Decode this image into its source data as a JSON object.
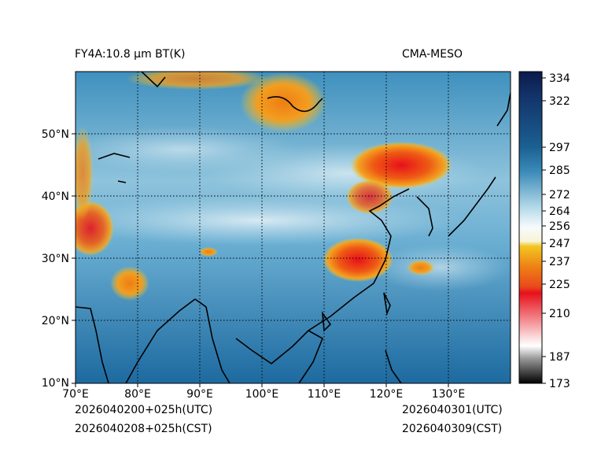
{
  "header": {
    "title_left": "FY4A:10.8 µm BT(K)",
    "title_right": "CMA-MESO"
  },
  "footer": {
    "init_utc": "2026040200+025h(UTC)",
    "init_cst": "2026040208+025h(CST)",
    "valid_utc": "2026040301(UTC)",
    "valid_cst": "2026040309(CST)"
  },
  "map": {
    "lon_range": [
      70,
      140
    ],
    "lat_range": [
      10,
      60
    ],
    "lon_ticks": [
      "70°E",
      "80°E",
      "90°E",
      "100°E",
      "110°E",
      "120°E",
      "130°E"
    ],
    "lat_ticks": [
      "10°N",
      "20°N",
      "30°N",
      "40°N",
      "50°N"
    ]
  },
  "colorbar": {
    "labels": [
      "334",
      "322",
      "297",
      "285",
      "272",
      "264",
      "256",
      "247",
      "237",
      "225",
      "210",
      "187",
      "173"
    ],
    "colors": {
      "navy": "#0b1a4a",
      "blue": "#1b5f91",
      "light_blue": "#b9dcea",
      "yellow": "#f3c623",
      "orange": "#ee7d14",
      "red": "#e8101b",
      "gray": "#555555"
    }
  }
}
